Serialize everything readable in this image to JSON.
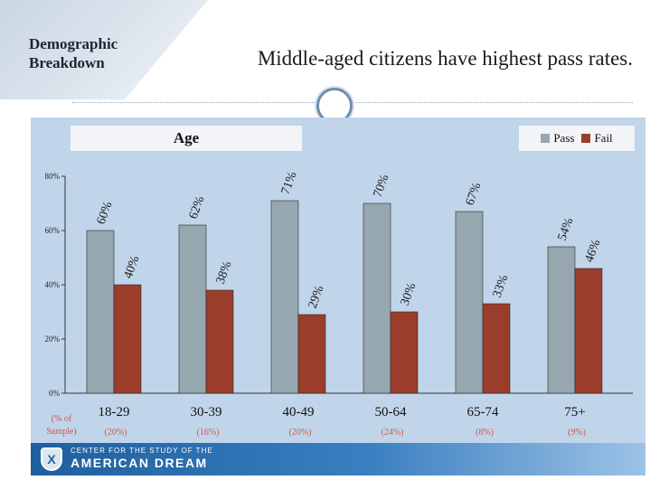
{
  "header": {
    "section_title_line1": "Demographic",
    "section_title_line2": "Breakdown",
    "headline": "Middle-aged citizens have highest pass rates."
  },
  "footer": {
    "org_line1": "CENTER FOR THE STUDY OF THE",
    "org_line2": "AMERICAN DREAM",
    "logo_glyph": "X"
  },
  "chart_data": {
    "type": "bar",
    "title": "Age",
    "categories": [
      "18-29",
      "30-39",
      "40-49",
      "50-64",
      "65-74",
      "75+"
    ],
    "sample_label_line1": "(% of",
    "sample_label_line2": "Sample)",
    "sample_shares": [
      "(20%)",
      "(16%)",
      "(20%)",
      "(24%)",
      "(8%)",
      "(9%)"
    ],
    "series": [
      {
        "name": "Pass",
        "color": "#96a7b0",
        "values": [
          60,
          62,
          71,
          70,
          67,
          54
        ],
        "labels": [
          "60%",
          "62%",
          "71%",
          "70%",
          "67%",
          "54%"
        ]
      },
      {
        "name": "Fail",
        "color": "#9b3d2b",
        "values": [
          40,
          38,
          29,
          30,
          33,
          46
        ],
        "labels": [
          "40%",
          "38%",
          "29%",
          "30%",
          "33%",
          "46%"
        ]
      }
    ],
    "yticks": [
      "0%",
      "20%",
      "40%",
      "60%",
      "80%"
    ],
    "ylim": [
      0,
      80
    ],
    "legend_position": "top-right",
    "grid": false
  }
}
